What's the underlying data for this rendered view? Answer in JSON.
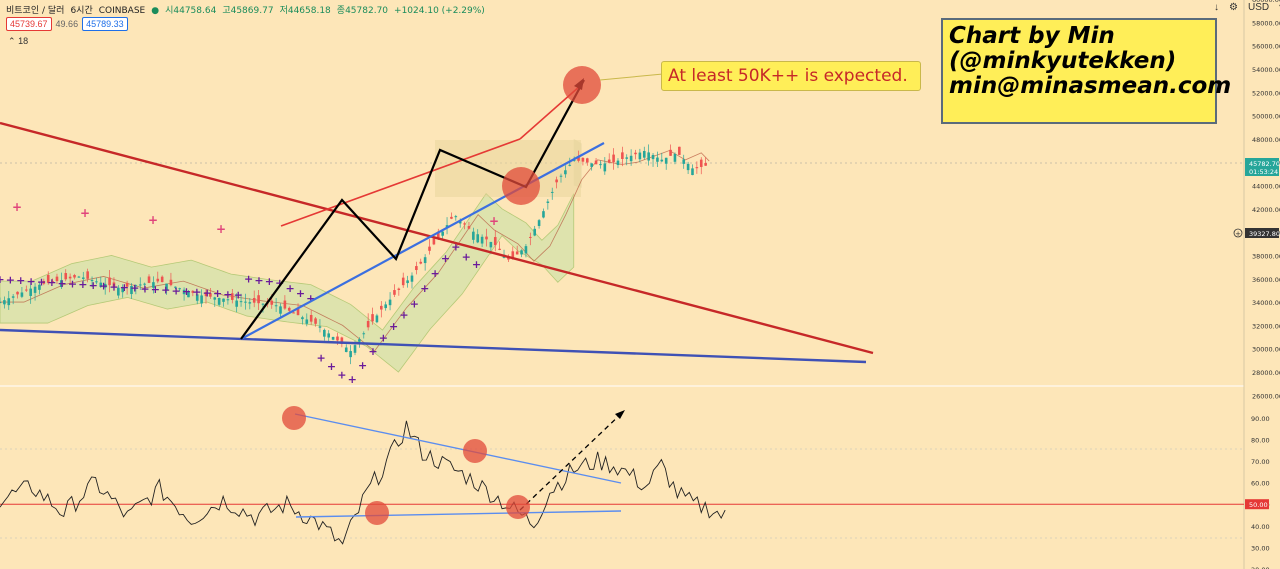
{
  "header": {
    "symbol": "비트코인 / 달러",
    "interval": "6시간",
    "exchange": "COINBASE",
    "open": "시44758.64",
    "high": "고45869.77",
    "low": "저44658.18",
    "close": "종45782.70",
    "change": "+1024.10 (+2.29%)",
    "bid_price": "45739.67",
    "spread": "49.66",
    "ask_price": "45789.33",
    "indicator_length": "18"
  },
  "top_controls": {
    "download_icon": "download-icon",
    "settings_icon": "gear-icon",
    "currency": "USD"
  },
  "brand_box": {
    "line1": "Chart by Min",
    "line2": "(@minkyutekken)",
    "line3": "min@minasmean.com"
  },
  "callout": {
    "text": "At least 50K++ is expected."
  },
  "colors": {
    "background": "#fde6b8",
    "bull_candle": "#26a69a",
    "bear_candle": "#ef5350",
    "trend_red": "#c62828",
    "trend_blue": "#3f51b5",
    "cloud": "#c5e1a5",
    "marker": "#e04a3a",
    "rsi": "#222222"
  },
  "chart_data": [
    {
      "type": "candlestick",
      "title": "",
      "ylim": [
        25000,
        60000
      ],
      "y_ticks": [
        "60000.00",
        "58000.00",
        "56000.00",
        "54000.00",
        "52000.00",
        "50000.00",
        "48000.00",
        "46000.00",
        "44000.00",
        "42000.00",
        "40000.00",
        "38000.00",
        "36000.00",
        "34000.00",
        "32000.00",
        "30000.00",
        "28000.00",
        "26000.00"
      ],
      "last_price_label": "45782.70",
      "countdown_label": "01:53:24",
      "crosshair_label": "39327.80",
      "price_path": [
        [
          0,
          34000
        ],
        [
          5,
          35500
        ],
        [
          10,
          36200
        ],
        [
          15,
          35200
        ],
        [
          20,
          35800
        ],
        [
          25,
          34600
        ],
        [
          30,
          34100
        ],
        [
          35,
          33700
        ],
        [
          40,
          32000
        ],
        [
          44,
          29800
        ],
        [
          48,
          33500
        ],
        [
          52,
          36500
        ],
        [
          55,
          39500
        ],
        [
          57,
          41500
        ],
        [
          59,
          40200
        ],
        [
          62,
          39000
        ],
        [
          64,
          37500
        ],
        [
          66,
          38800
        ],
        [
          68,
          41500
        ],
        [
          70,
          44500
        ],
        [
          72,
          46200
        ],
        [
          75,
          45800
        ],
        [
          77,
          46000
        ],
        [
          79,
          46500
        ],
        [
          81,
          47000
        ],
        [
          83,
          46200
        ],
        [
          85,
          46800
        ],
        [
          87,
          45400
        ],
        [
          89,
          45782
        ]
      ],
      "x_range": [
        0,
        160
      ]
    },
    {
      "type": "line",
      "title": "",
      "ylim": [
        20,
        95
      ],
      "y_ticks": [
        "90.00",
        "80.00",
        "70.00",
        "60.00",
        "50.00",
        "40.00",
        "30.00",
        "20.00"
      ],
      "level_line": 50,
      "level_label": "50.00",
      "rsi_path": [
        [
          0,
          52
        ],
        [
          4,
          58
        ],
        [
          8,
          46
        ],
        [
          12,
          60
        ],
        [
          16,
          44
        ],
        [
          20,
          57
        ],
        [
          24,
          43
        ],
        [
          28,
          52
        ],
        [
          32,
          44
        ],
        [
          36,
          50
        ],
        [
          40,
          41
        ],
        [
          43,
          31
        ],
        [
          46,
          55
        ],
        [
          49,
          72
        ],
        [
          51,
          86
        ],
        [
          53,
          74
        ],
        [
          56,
          68
        ],
        [
          59,
          62
        ],
        [
          62,
          54
        ],
        [
          65,
          46
        ],
        [
          67,
          41
        ],
        [
          69,
          56
        ],
        [
          72,
          66
        ],
        [
          75,
          70
        ],
        [
          77,
          68
        ],
        [
          79,
          64
        ],
        [
          81,
          58
        ],
        [
          83,
          68
        ],
        [
          85,
          55
        ],
        [
          87,
          50
        ],
        [
          89,
          48
        ],
        [
          91,
          44
        ]
      ],
      "x_range": [
        0,
        160
      ]
    }
  ]
}
